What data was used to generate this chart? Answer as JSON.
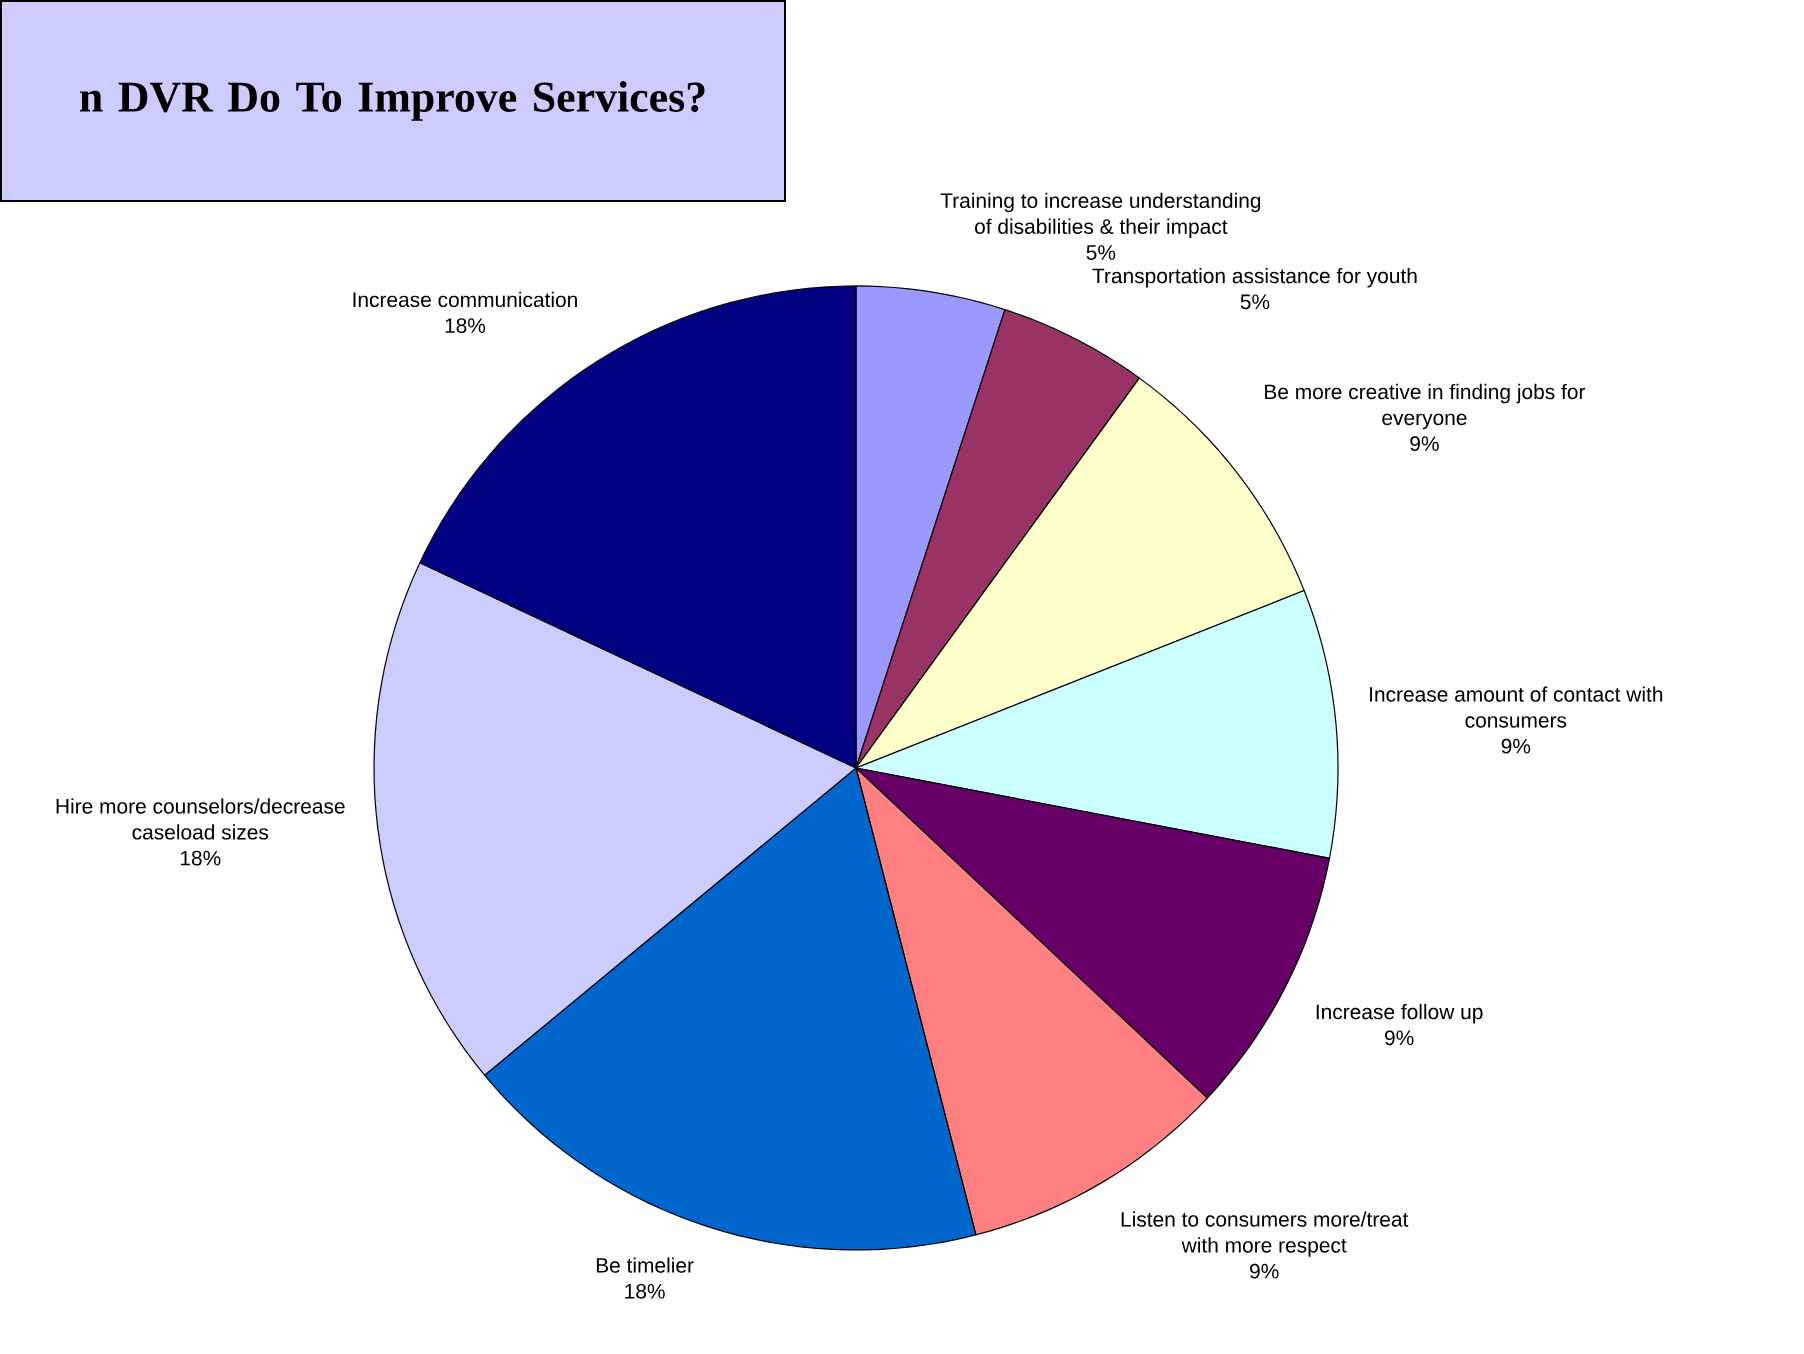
{
  "chart_data": {
    "type": "pie",
    "title": "n DVR Do To Improve Services?",
    "categories": [
      "Training to increase understanding of disabilities & their impact",
      "Transportation assistance for youth",
      "Be more creative in finding jobs for everyone",
      "Increase amount of contact with consumers",
      "Increase follow up",
      "Listen to consumers more/treat with more respect",
      "Be timelier",
      "Hire more counselors/decrease caseload sizes",
      "Increase communication"
    ],
    "values": [
      5,
      5,
      9,
      9,
      9,
      9,
      18,
      18,
      18
    ],
    "value_labels": [
      "5%",
      "5%",
      "9%",
      "9%",
      "9%",
      "9%",
      "18%",
      "18%",
      "18%"
    ],
    "colors": [
      "#9999ff",
      "#993366",
      "#ffffcc",
      "#ccffff",
      "#660066",
      "#ff8080",
      "#0066cc",
      "#ccccff",
      "#000080"
    ]
  }
}
